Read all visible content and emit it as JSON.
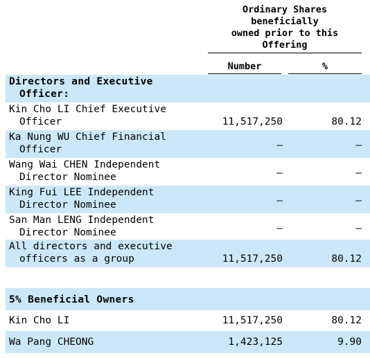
{
  "header": {
    "title_lines": [
      "Ordinary Shares",
      "beneficially",
      "owned prior to this",
      "Offering"
    ],
    "col_number": "Number",
    "col_percent": "%"
  },
  "section_directors": {
    "heading_lines": [
      "Directors and Executive",
      "Officer:"
    ],
    "rows": [
      {
        "line1": "Kin Cho LI Chief Executive",
        "line2": "Officer",
        "number": "11,517,250",
        "percent": "80.12"
      },
      {
        "line1": "Ka Nung WU Chief Financial",
        "line2": "Officer",
        "number": "—",
        "percent": "—"
      },
      {
        "line1": "Wang Wai CHEN Independent",
        "line2": "Director Nominee",
        "number": "—",
        "percent": "—"
      },
      {
        "line1": "King Fui LEE Independent",
        "line2": "Director Nominee",
        "number": "—",
        "percent": "—"
      },
      {
        "line1": "San Man LENG Independent",
        "line2": "Director Nominee",
        "number": "—",
        "percent": "—"
      },
      {
        "line1": "All directors and executive",
        "line2": "officers as a group",
        "number": "11,517,250",
        "percent": "80.12"
      }
    ]
  },
  "section_owners": {
    "heading": "5% Beneficial Owners",
    "rows": [
      {
        "name": "Kin Cho LI",
        "number": "11,517,250",
        "percent": "80.12"
      },
      {
        "name": "Wa Pang CHEONG",
        "number": "1,423,125",
        "percent": "9.90"
      }
    ]
  },
  "colors": {
    "shade": "#cce8f8",
    "text": "#000000"
  }
}
